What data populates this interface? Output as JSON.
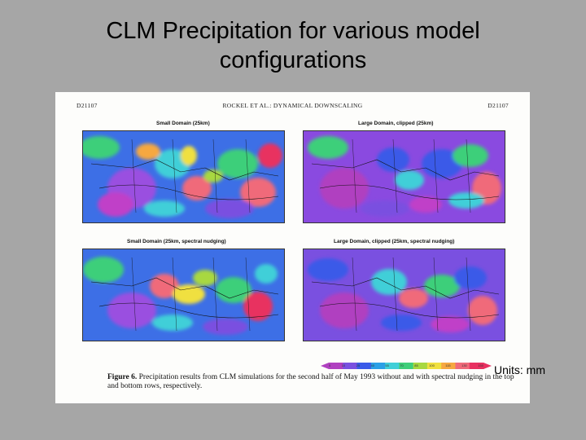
{
  "slide": {
    "title_line1": "CLM Precipitation for various model",
    "title_line2": "configurations",
    "units": "Units: mm"
  },
  "figure": {
    "header_left": "D21107",
    "header_center": "ROCKEL ET AL.: DYNAMICAL DOWNSCALING",
    "header_right": "D21107",
    "panels": [
      {
        "title": "Small Domain (25km)"
      },
      {
        "title": "Large Domain, clipped (25km)"
      },
      {
        "title": "Small Domain (25km, spectral nudging)"
      },
      {
        "title": "Large Domain, clipped (25km, spectral nudging)"
      }
    ],
    "colorbar": {
      "labels": [
        "5",
        "10",
        "25",
        "40",
        "55",
        "70",
        "85",
        "100",
        "115",
        "130",
        "150"
      ],
      "colors": [
        "#b040c0",
        "#7a50e0",
        "#3a5ae8",
        "#2aa0e6",
        "#40cfd8",
        "#3ecf7a",
        "#a8d840",
        "#f0e040",
        "#f6a840",
        "#f06a7a",
        "#e83060"
      ]
    },
    "caption_label": "Figure 6.",
    "caption_text": "Precipitation results from CLM simulations for the second half of May 1993 without and with spectral nudging in the top and bottom rows, respectively."
  }
}
